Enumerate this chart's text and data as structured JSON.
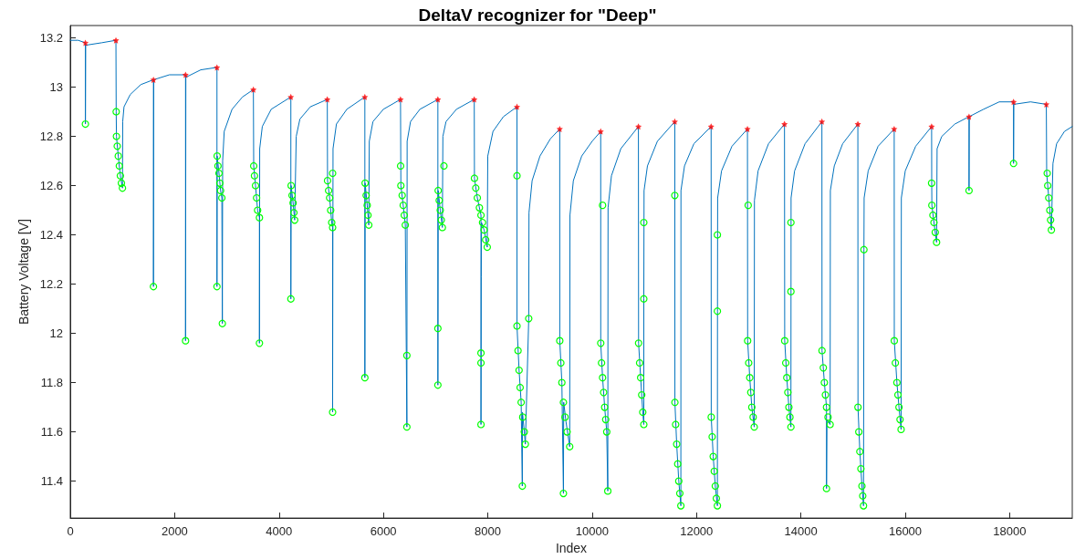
{
  "chart_data": {
    "type": "line",
    "title": "DeltaV recognizer for \"Deep\"",
    "xlabel": "Index",
    "ylabel": "Battery Voltage [V]",
    "xlim": [
      0,
      19200
    ],
    "xticks": [
      0,
      2000,
      4000,
      6000,
      8000,
      10000,
      12000,
      14000,
      16000,
      18000
    ],
    "ylim": [
      11.25,
      13.25
    ],
    "yticks": [
      11.4,
      11.6,
      11.8,
      12,
      12.2,
      12.4,
      12.6,
      12.8,
      13,
      13.2
    ],
    "grid": false,
    "series": [
      {
        "color": "#0072bd",
        "marker": "none",
        "x": [
          0,
          150,
          290,
          290,
          295,
          600,
          875,
          880,
          885,
          920,
          960,
          1000,
          1005,
          1030,
          1150,
          1350,
          1594,
          1594,
          1600,
          1900,
          2209,
          2209,
          2215,
          2500,
          2811,
          2811,
          2815,
          2850,
          2880,
          2905,
          2914,
          2920,
          2950,
          3100,
          3300,
          3509,
          3515,
          3550,
          3590,
          3625,
          3625,
          3630,
          3680,
          3850,
          4227,
          4227,
          4232,
          4270,
          4300,
          4330,
          4400,
          4600,
          4925,
          4930,
          4970,
          5010,
          5027,
          5027,
          5035,
          5100,
          5300,
          5645,
          5645,
          5650,
          5690,
          5720,
          5730,
          5800,
          6000,
          6328,
          6335,
          6380,
          6420,
          6450,
          6455,
          6520,
          6700,
          7044,
          7044,
          7050,
          7090,
          7130,
          7140,
          7200,
          7400,
          7741,
          7745,
          7800,
          7870,
          7870,
          7875,
          7880,
          7930,
          7990,
          8000,
          8100,
          8300,
          8560,
          8560,
          8600,
          8640,
          8662,
          8665,
          8700,
          8720,
          8785,
          8790,
          8850,
          9000,
          9200,
          9379,
          9380,
          9420,
          9450,
          9455,
          9500,
          9570,
          9575,
          9640,
          9800,
          10000,
          10164,
          10165,
          10200,
          10240,
          10280,
          10300,
          10305,
          10370,
          10550,
          10887,
          10890,
          10930,
          10970,
          10990,
          10990,
          10995,
          11060,
          11250,
          11584,
          11586,
          11620,
          11660,
          11700,
          11702,
          11770,
          11950,
          12280,
          12282,
          12320,
          12360,
          12400,
          12402,
          12405,
          12480,
          12680,
          12976,
          12980,
          13020,
          13060,
          13106,
          13110,
          13180,
          13380,
          13686,
          13690,
          13730,
          13770,
          13809,
          13812,
          13880,
          14080,
          14403,
          14405,
          14450,
          14491,
          14491,
          14500,
          14560,
          14565,
          14640,
          14800,
          15092,
          15094,
          15130,
          15170,
          15200,
          15208,
          15212,
          15290,
          15480,
          15788,
          15790,
          15840,
          15880,
          15920,
          15925,
          16000,
          16200,
          16505,
          16507,
          16510,
          16550,
          16600,
          16610,
          16700,
          16950,
          17222,
          17222,
          17226,
          17500,
          17800,
          18075,
          18075,
          18080,
          18400,
          18703,
          18710,
          18730,
          18770,
          18800,
          18830,
          18900,
          19050,
          19200
        ],
        "values": [
          13.19,
          13.19,
          13.18,
          12.85,
          13.17,
          13.18,
          13.19,
          12.9,
          12.8,
          12.72,
          12.64,
          12.59,
          12.86,
          12.92,
          12.97,
          13.01,
          13.03,
          12.19,
          13.03,
          13.05,
          13.05,
          11.97,
          13.04,
          13.07,
          13.08,
          12.19,
          12.72,
          12.65,
          12.58,
          12.55,
          12.04,
          12.7,
          12.82,
          12.91,
          12.96,
          12.99,
          12.68,
          12.6,
          12.5,
          12.47,
          11.96,
          12.75,
          12.84,
          12.91,
          12.96,
          12.14,
          12.6,
          12.53,
          12.46,
          12.8,
          12.87,
          12.92,
          12.95,
          12.62,
          12.55,
          12.45,
          12.43,
          11.68,
          12.75,
          12.85,
          12.91,
          12.96,
          11.82,
          12.61,
          12.52,
          12.44,
          12.78,
          12.86,
          12.91,
          12.95,
          12.6,
          12.52,
          12.44,
          11.62,
          12.78,
          12.86,
          12.91,
          12.95,
          11.79,
          12.58,
          12.5,
          12.43,
          12.8,
          12.86,
          12.91,
          12.95,
          12.63,
          12.55,
          12.48,
          11.63,
          12.23,
          12.45,
          12.42,
          12.35,
          12.72,
          12.82,
          12.88,
          12.92,
          12.03,
          11.85,
          11.72,
          11.38,
          11.68,
          11.6,
          11.55,
          12.06,
          12.49,
          12.62,
          12.72,
          12.79,
          12.83,
          11.97,
          11.8,
          11.35,
          11.72,
          11.64,
          11.54,
          12.48,
          12.62,
          12.72,
          12.78,
          12.82,
          11.96,
          11.82,
          11.7,
          11.6,
          11.36,
          12.51,
          12.64,
          12.75,
          12.84,
          11.96,
          11.82,
          11.68,
          11.63,
          12.14,
          12.58,
          12.68,
          12.78,
          12.86,
          11.72,
          11.55,
          11.4,
          11.3,
          12.58,
          12.68,
          12.77,
          12.84,
          11.66,
          11.5,
          11.38,
          11.3,
          12.09,
          12.55,
          12.66,
          12.76,
          12.83,
          11.97,
          11.82,
          11.7,
          11.62,
          12.54,
          12.66,
          12.77,
          12.85,
          11.97,
          11.82,
          11.7,
          11.62,
          12.55,
          12.66,
          12.77,
          12.86,
          11.93,
          11.8,
          11.7,
          11.37,
          11.65,
          11.63,
          12.58,
          12.68,
          12.77,
          12.85,
          11.7,
          11.52,
          11.38,
          11.3,
          12.34,
          12.55,
          12.66,
          12.76,
          12.83,
          11.97,
          11.8,
          11.7,
          11.61,
          12.55,
          12.66,
          12.76,
          12.84,
          12.61,
          12.52,
          12.45,
          12.37,
          12.75,
          12.8,
          12.85,
          12.88,
          12.58,
          12.88,
          12.91,
          12.94,
          12.94,
          12.69,
          12.93,
          12.94,
          12.93,
          12.65,
          12.6,
          12.5,
          12.42,
          12.69,
          12.77,
          12.82,
          12.84
        ]
      },
      {
        "type": "scatter",
        "color": "#00ff00",
        "marker": "circle",
        "x": [
          290,
          880,
          885,
          900,
          920,
          940,
          960,
          980,
          1000,
          1594,
          2209,
          2811,
          2815,
          2830,
          2850,
          2865,
          2880,
          2905,
          2914,
          3515,
          3530,
          3550,
          3570,
          3590,
          3625,
          3625,
          4227,
          4232,
          4250,
          4270,
          4285,
          4300,
          4930,
          4950,
          4970,
          4990,
          5010,
          5027,
          5027,
          5027,
          5645,
          5650,
          5670,
          5690,
          5705,
          5720,
          6330,
          6335,
          6360,
          6380,
          6400,
          6420,
          6450,
          6450,
          7044,
          7044,
          7050,
          7070,
          7090,
          7110,
          7130,
          7160,
          7745,
          7770,
          7800,
          7840,
          7870,
          7900,
          7930,
          7960,
          7990,
          7870,
          7870,
          7870,
          8560,
          8560,
          8580,
          8600,
          8620,
          8640,
          8670,
          8700,
          8720,
          8662,
          8785,
          9380,
          9400,
          9420,
          9450,
          9480,
          9520,
          9570,
          9450,
          10200,
          10165,
          10180,
          10200,
          10220,
          10240,
          10260,
          10280,
          10300,
          10890,
          10910,
          10930,
          10950,
          10970,
          10990,
          10990,
          10990,
          11584,
          11586,
          11600,
          11620,
          11640,
          11660,
          11680,
          11700,
          12282,
          12300,
          12320,
          12340,
          12360,
          12380,
          12400,
          12400,
          12400,
          12990,
          12980,
          13000,
          13020,
          13040,
          13060,
          13085,
          13106,
          13690,
          13710,
          13730,
          13750,
          13770,
          13790,
          13809,
          13809,
          13809,
          14405,
          14430,
          14450,
          14470,
          14491,
          14520,
          14560,
          14491,
          15094,
          15110,
          15130,
          15150,
          15170,
          15185,
          15200,
          15208,
          15790,
          15810,
          15840,
          15860,
          15880,
          15900,
          15920,
          16505,
          16510,
          16530,
          16550,
          16575,
          16600,
          17222,
          18075,
          18720,
          18730,
          18750,
          18770,
          18785,
          18800
        ],
        "values": [
          12.85,
          12.9,
          12.8,
          12.76,
          12.72,
          12.68,
          12.64,
          12.61,
          12.59,
          12.19,
          11.97,
          12.19,
          12.72,
          12.68,
          12.65,
          12.61,
          12.58,
          12.55,
          12.04,
          12.68,
          12.64,
          12.6,
          12.55,
          12.5,
          12.47,
          11.96,
          12.14,
          12.6,
          12.56,
          12.53,
          12.49,
          12.46,
          12.62,
          12.58,
          12.55,
          12.5,
          12.45,
          12.43,
          12.65,
          11.68,
          11.82,
          12.61,
          12.56,
          12.52,
          12.48,
          12.44,
          12.68,
          12.6,
          12.56,
          12.52,
          12.48,
          12.44,
          11.91,
          11.62,
          12.02,
          11.79,
          12.58,
          12.54,
          12.5,
          12.46,
          12.43,
          12.68,
          12.63,
          12.59,
          12.55,
          12.51,
          12.48,
          12.45,
          12.42,
          12.38,
          12.35,
          11.92,
          11.88,
          11.63,
          12.64,
          12.03,
          11.93,
          11.85,
          11.78,
          11.72,
          11.66,
          11.6,
          11.55,
          11.38,
          12.06,
          11.97,
          11.88,
          11.8,
          11.72,
          11.66,
          11.6,
          11.54,
          11.35,
          12.52,
          11.96,
          11.88,
          11.82,
          11.76,
          11.7,
          11.65,
          11.6,
          11.36,
          11.96,
          11.88,
          11.82,
          11.75,
          11.68,
          11.63,
          12.45,
          12.14,
          12.56,
          11.72,
          11.63,
          11.55,
          11.47,
          11.4,
          11.35,
          11.3,
          11.66,
          11.58,
          11.5,
          11.44,
          11.38,
          11.33,
          11.3,
          12.4,
          12.09,
          12.52,
          11.97,
          11.88,
          11.82,
          11.76,
          11.7,
          11.66,
          11.62,
          11.97,
          11.88,
          11.82,
          11.76,
          11.7,
          11.66,
          11.62,
          12.45,
          12.17,
          11.93,
          11.86,
          11.8,
          11.75,
          11.7,
          11.66,
          11.63,
          11.37,
          11.7,
          11.6,
          11.52,
          11.45,
          11.38,
          11.34,
          11.3,
          12.34,
          11.97,
          11.88,
          11.8,
          11.75,
          11.7,
          11.65,
          11.61,
          12.61,
          12.52,
          12.48,
          12.45,
          12.41,
          12.37,
          12.58,
          12.69,
          12.65,
          12.6,
          12.55,
          12.5,
          12.46,
          12.42
        ]
      },
      {
        "type": "scatter",
        "color": "#ff0000",
        "marker": "star",
        "x": [
          290,
          875,
          1594,
          2209,
          2811,
          3509,
          4227,
          4925,
          5645,
          6328,
          7044,
          7741,
          8560,
          9379,
          10164,
          10887,
          11584,
          12280,
          12976,
          13686,
          14403,
          15092,
          15788,
          16505,
          17222,
          18075,
          18703
        ],
        "values": [
          13.18,
          13.19,
          13.03,
          13.05,
          13.08,
          12.99,
          12.96,
          12.95,
          12.96,
          12.95,
          12.95,
          12.95,
          12.92,
          12.83,
          12.82,
          12.84,
          12.86,
          12.84,
          12.83,
          12.85,
          12.86,
          12.85,
          12.83,
          12.84,
          12.88,
          12.94,
          12.93
        ]
      }
    ]
  }
}
